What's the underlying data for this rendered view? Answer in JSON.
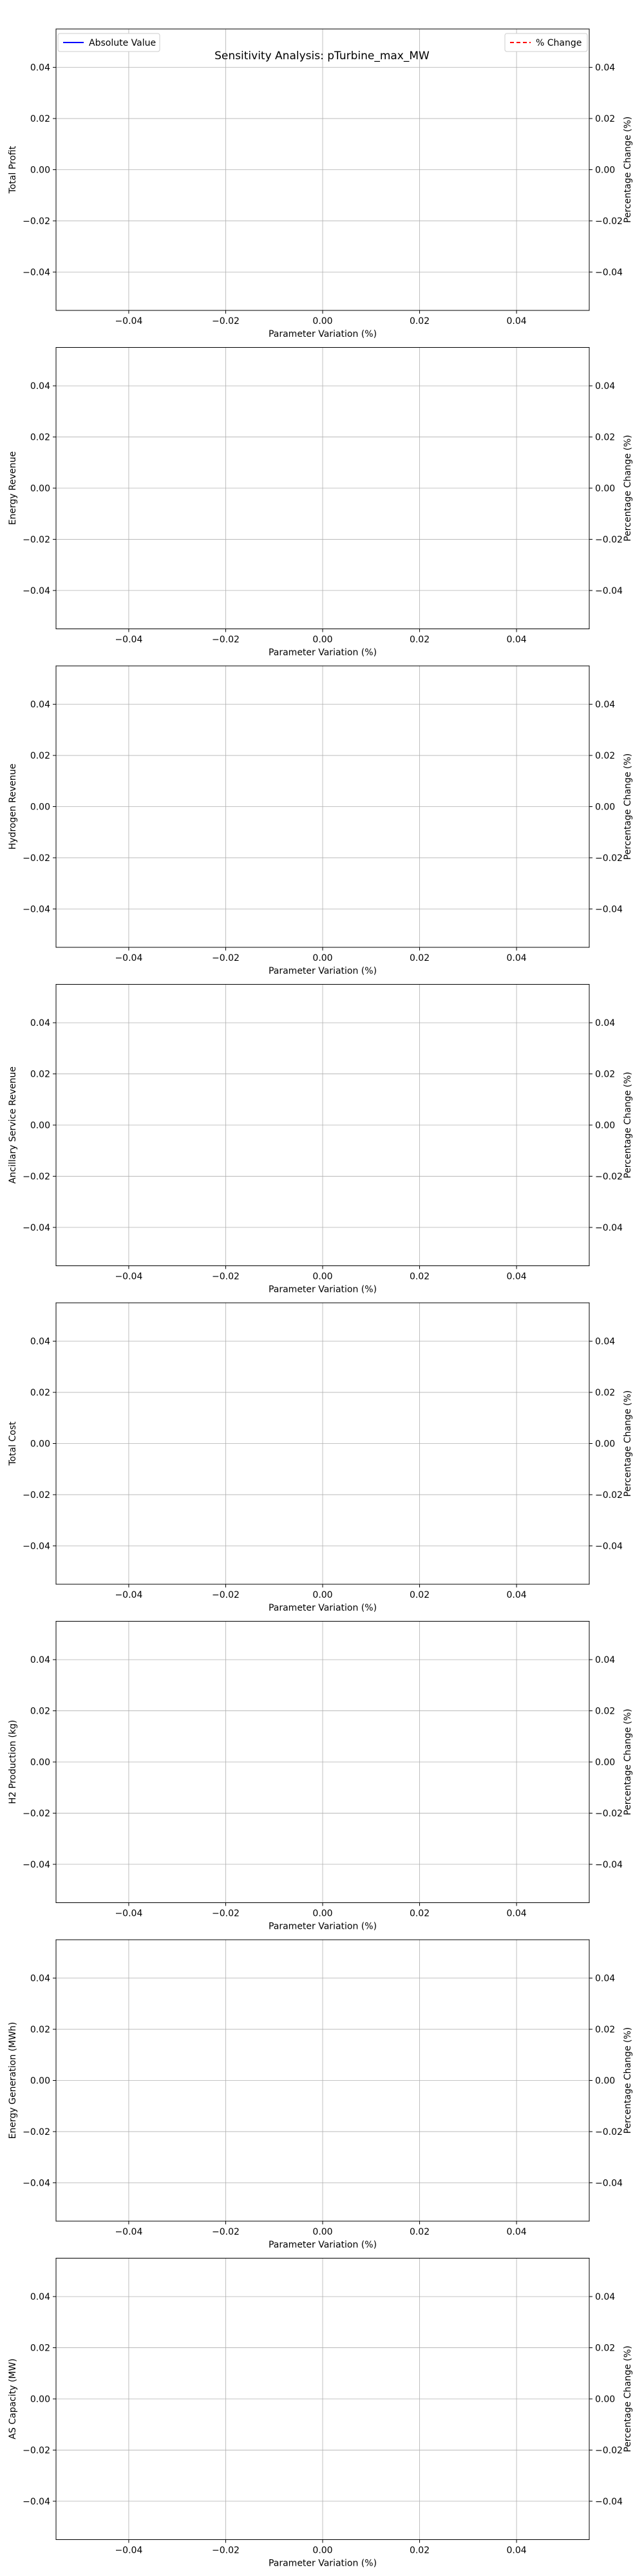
{
  "title": "Sensitivity Analysis: pTurbine_max_MW",
  "legend": {
    "left": {
      "label": "Absolute Value",
      "color": "#0000ff",
      "style": "solid"
    },
    "right": {
      "label": "% Change",
      "color": "#ff0000",
      "style": "dashed"
    }
  },
  "chart_data": [
    {
      "type": "line",
      "xlabel": "Parameter Variation (%)",
      "ylabel": "Total Profit",
      "y2label": "Percentage Change (%)",
      "xlim": [
        -0.055,
        0.055
      ],
      "ylim": [
        -0.055,
        0.055
      ],
      "xticks": [
        "−0.04",
        "−0.02",
        "0.00",
        "0.02",
        "0.04"
      ],
      "yticks": [
        "0.04",
        "0.02",
        "0.00",
        "−0.02",
        "−0.04"
      ],
      "grid": true,
      "series": []
    },
    {
      "type": "line",
      "xlabel": "Parameter Variation (%)",
      "ylabel": "Energy Revenue",
      "y2label": "Percentage Change (%)",
      "xlim": [
        -0.055,
        0.055
      ],
      "ylim": [
        -0.055,
        0.055
      ],
      "xticks": [
        "−0.04",
        "−0.02",
        "0.00",
        "0.02",
        "0.04"
      ],
      "yticks": [
        "0.04",
        "0.02",
        "0.00",
        "−0.02",
        "−0.04"
      ],
      "grid": true,
      "series": []
    },
    {
      "type": "line",
      "xlabel": "Parameter Variation (%)",
      "ylabel": "Hydrogen Revenue",
      "y2label": "Percentage Change (%)",
      "xlim": [
        -0.055,
        0.055
      ],
      "ylim": [
        -0.055,
        0.055
      ],
      "xticks": [
        "−0.04",
        "−0.02",
        "0.00",
        "0.02",
        "0.04"
      ],
      "yticks": [
        "0.04",
        "0.02",
        "0.00",
        "−0.02",
        "−0.04"
      ],
      "grid": true,
      "series": []
    },
    {
      "type": "line",
      "xlabel": "Parameter Variation (%)",
      "ylabel": "Ancillary Service Revenue",
      "y2label": "Percentage Change (%)",
      "xlim": [
        -0.055,
        0.055
      ],
      "ylim": [
        -0.055,
        0.055
      ],
      "xticks": [
        "−0.04",
        "−0.02",
        "0.00",
        "0.02",
        "0.04"
      ],
      "yticks": [
        "0.04",
        "0.02",
        "0.00",
        "−0.02",
        "−0.04"
      ],
      "grid": true,
      "series": []
    },
    {
      "type": "line",
      "xlabel": "Parameter Variation (%)",
      "ylabel": "Total Cost",
      "y2label": "Percentage Change (%)",
      "xlim": [
        -0.055,
        0.055
      ],
      "ylim": [
        -0.055,
        0.055
      ],
      "xticks": [
        "−0.04",
        "−0.02",
        "0.00",
        "0.02",
        "0.04"
      ],
      "yticks": [
        "0.04",
        "0.02",
        "0.00",
        "−0.02",
        "−0.04"
      ],
      "grid": true,
      "series": []
    },
    {
      "type": "line",
      "xlabel": "Parameter Variation (%)",
      "ylabel": "H2 Production (kg)",
      "y2label": "Percentage Change (%)",
      "xlim": [
        -0.055,
        0.055
      ],
      "ylim": [
        -0.055,
        0.055
      ],
      "xticks": [
        "−0.04",
        "−0.02",
        "0.00",
        "0.02",
        "0.04"
      ],
      "yticks": [
        "0.04",
        "0.02",
        "0.00",
        "−0.02",
        "−0.04"
      ],
      "grid": true,
      "series": []
    },
    {
      "type": "line",
      "xlabel": "Parameter Variation (%)",
      "ylabel": "Energy Generation (MWh)",
      "y2label": "Percentage Change (%)",
      "xlim": [
        -0.055,
        0.055
      ],
      "ylim": [
        -0.055,
        0.055
      ],
      "xticks": [
        "−0.04",
        "−0.02",
        "0.00",
        "0.02",
        "0.04"
      ],
      "yticks": [
        "0.04",
        "0.02",
        "0.00",
        "−0.02",
        "−0.04"
      ],
      "grid": true,
      "series": []
    },
    {
      "type": "line",
      "xlabel": "Parameter Variation (%)",
      "ylabel": "AS Capacity (MW)",
      "y2label": "Percentage Change (%)",
      "xlim": [
        -0.055,
        0.055
      ],
      "ylim": [
        -0.055,
        0.055
      ],
      "xticks": [
        "−0.04",
        "−0.02",
        "0.00",
        "0.02",
        "0.04"
      ],
      "yticks": [
        "0.04",
        "0.02",
        "0.00",
        "−0.02",
        "−0.04"
      ],
      "grid": true,
      "series": []
    }
  ]
}
